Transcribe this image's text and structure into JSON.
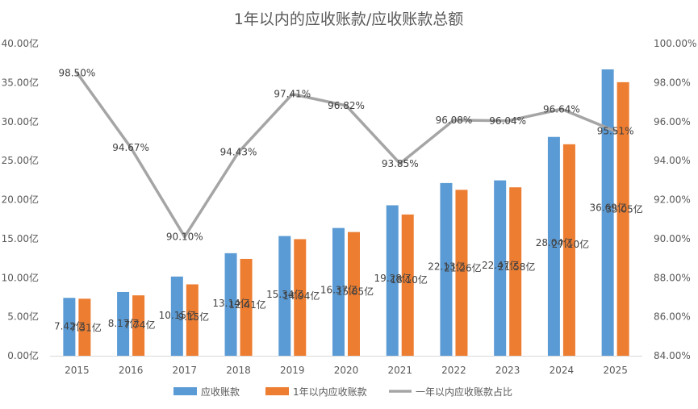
{
  "chart_data": {
    "type": "bar+line",
    "title": "1年以内的应收账款/应收账款总额",
    "categories": [
      "2015",
      "2016",
      "2017",
      "2018",
      "2019",
      "2020",
      "2021",
      "2022",
      "2023",
      "2024",
      "2025"
    ],
    "series": [
      {
        "name": "应收账款",
        "kind": "bar",
        "axis": "left",
        "color": "#5b9bd5",
        "values": [
          7.42,
          8.17,
          10.15,
          13.14,
          15.34,
          16.37,
          19.28,
          22.13,
          22.47,
          28.04,
          36.69
        ],
        "labels": [
          "7.42亿",
          "8.17亿",
          "10.15亿",
          "13.14亿",
          "15.34亿",
          "16.37亿",
          "19.28亿",
          "22.13亿",
          "22.47亿",
          "28.04亿",
          "36.69亿"
        ]
      },
      {
        "name": "1年以内应收账款",
        "kind": "bar",
        "axis": "left",
        "color": "#ed7d31",
        "values": [
          7.31,
          7.74,
          9.15,
          12.41,
          14.94,
          15.85,
          18.1,
          21.26,
          21.58,
          27.1,
          35.05
        ],
        "labels": [
          "7.31亿",
          "7.74亿",
          "9.15亿",
          "12.41亿",
          "14.94亿",
          "15.85亿",
          "18.10亿",
          "21.26亿",
          "21.58亿",
          "27.10亿",
          "35.05亿"
        ]
      },
      {
        "name": "一年以内应收账款占比",
        "kind": "line",
        "axis": "right",
        "color": "#a5a5a5",
        "values": [
          98.5,
          94.67,
          90.1,
          94.43,
          97.41,
          96.82,
          93.85,
          96.08,
          96.04,
          96.64,
          95.51
        ],
        "labels": [
          "98.50%",
          "94.67%",
          "90.10%",
          "94.43%",
          "97.41%",
          "96.82%",
          "93.85%",
          "96.08%",
          "96.04%",
          "96.64%",
          "95.51%"
        ]
      }
    ],
    "y_left": {
      "min": 0,
      "max": 40,
      "step": 5,
      "tick_labels": [
        "0.00亿",
        "5.00亿",
        "10.00亿",
        "15.00亿",
        "20.00亿",
        "25.00亿",
        "30.00亿",
        "35.00亿",
        "40.00亿"
      ]
    },
    "y_right": {
      "min": 84,
      "max": 100,
      "step": 2,
      "tick_labels": [
        "84.00%",
        "86.00%",
        "88.00%",
        "90.00%",
        "92.00%",
        "94.00%",
        "96.00%",
        "98.00%",
        "100.00%"
      ]
    },
    "legend_position": "bottom",
    "grid": false
  }
}
